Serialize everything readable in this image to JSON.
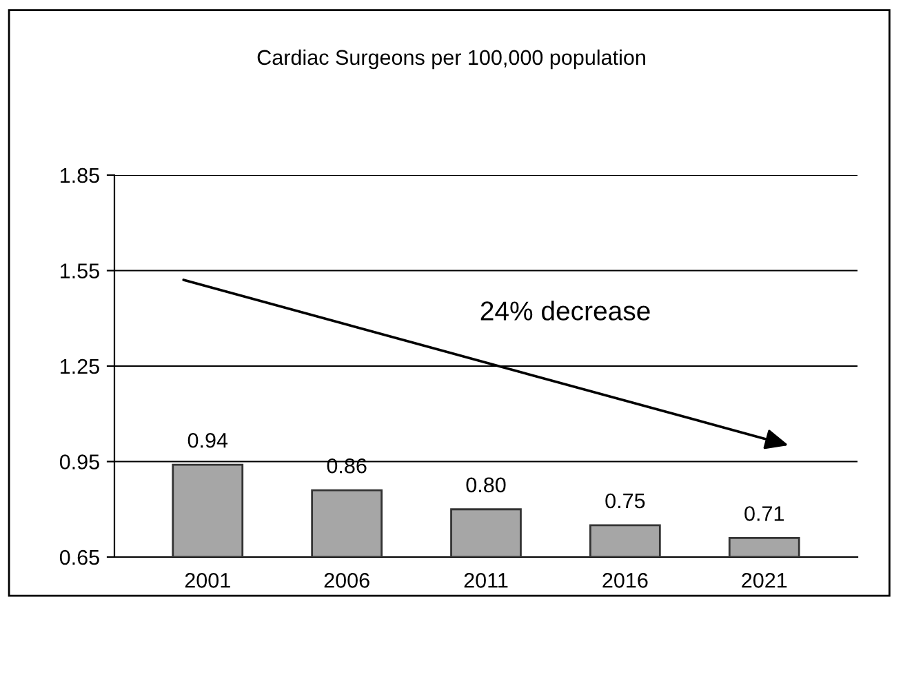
{
  "chart_data": {
    "type": "bar",
    "title": "Cardiac Surgeons per 100,000 population",
    "categories": [
      "2001",
      "2006",
      "2011",
      "2016",
      "2021"
    ],
    "values": [
      0.94,
      0.86,
      0.8,
      0.75,
      0.71
    ],
    "color": "#a6a6a6",
    "ylim": [
      0.65,
      1.85
    ],
    "yticks": [
      {
        "value": 0.65,
        "label": "0.65"
      },
      {
        "value": 0.95,
        "label": "0.95"
      },
      1.25,
      1.55,
      1.85
    ],
    "grid": "y",
    "value_labels": [
      "0.94",
      "0.86",
      "0.80",
      "0.75",
      "0.71"
    ],
    "annotations": [
      "24% decrease"
    ]
  }
}
